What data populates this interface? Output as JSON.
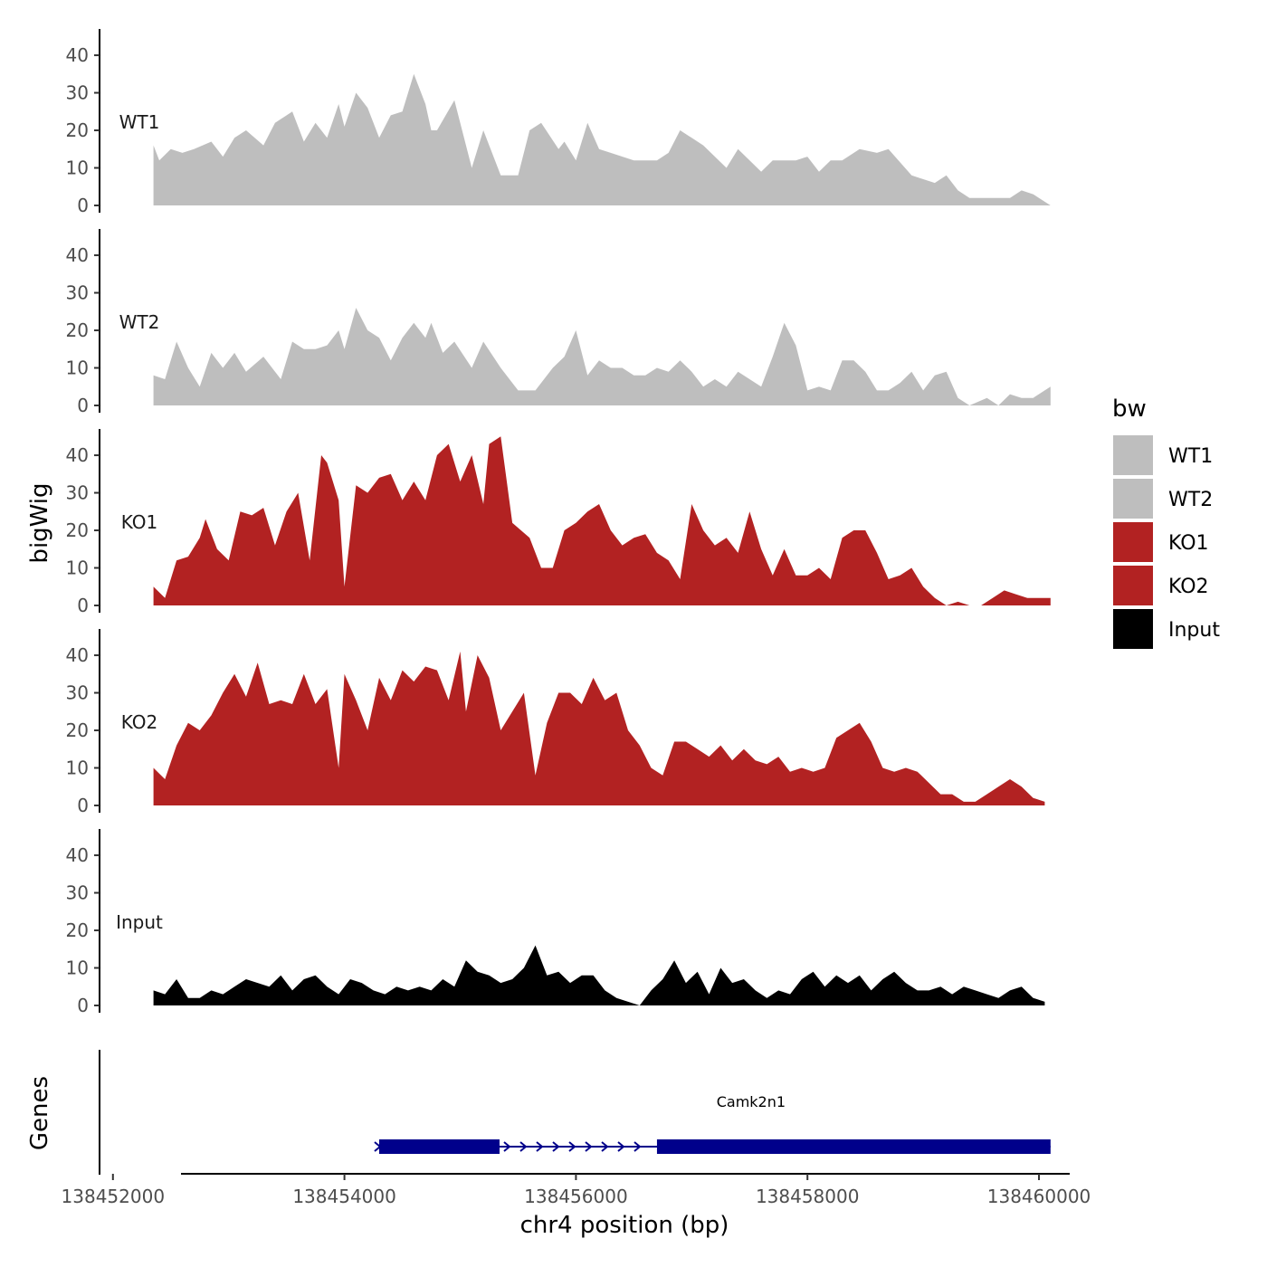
{
  "chart_data": {
    "type": "area",
    "chromosome_axis_label": "chr4 position (bp)",
    "y_axis_label": "bigWig",
    "genes_axis_label": "Genes",
    "xlim": [
      138451900,
      138460250
    ],
    "ylim": [
      0,
      47
    ],
    "x_ticks": [
      {
        "value": 138452000,
        "label": "138452000"
      },
      {
        "value": 138454000,
        "label": "138454000"
      },
      {
        "value": 138456000,
        "label": "138456000"
      },
      {
        "value": 138458000,
        "label": "138458000"
      },
      {
        "value": 138460000,
        "label": "138460000"
      }
    ],
    "y_ticks": [
      {
        "value": 0,
        "label": "0"
      },
      {
        "value": 10,
        "label": "10"
      },
      {
        "value": 20,
        "label": "20"
      },
      {
        "value": 30,
        "label": "30"
      },
      {
        "value": 40,
        "label": "40"
      }
    ],
    "legend": {
      "title": "bw",
      "items": [
        {
          "name": "WT1",
          "color": "#bebebe"
        },
        {
          "name": "WT2",
          "color": "#bebebe"
        },
        {
          "name": "KO1",
          "color": "#b22222"
        },
        {
          "name": "KO2",
          "color": "#b22222"
        },
        {
          "name": "Input",
          "color": "#000000"
        }
      ]
    },
    "series": [
      {
        "name": "WT1",
        "color": "#bebebe",
        "x": [
          138452350,
          138452400,
          138452500,
          138452600,
          138452700,
          138452850,
          138452950,
          138453050,
          138453150,
          138453300,
          138453400,
          138453550,
          138453650,
          138453750,
          138453850,
          138453950,
          138454000,
          138454100,
          138454200,
          138454300,
          138454400,
          138454500,
          138454600,
          138454700,
          138454750,
          138454800,
          138454950,
          138455100,
          138455200,
          138455350,
          138455500,
          138455600,
          138455700,
          138455850,
          138455900,
          138456000,
          138456100,
          138456200,
          138456300,
          138456500,
          138456700,
          138456800,
          138456900,
          138457000,
          138457100,
          138457300,
          138457400,
          138457600,
          138457700,
          138457900,
          138458000,
          138458100,
          138458200,
          138458300,
          138458450,
          138458600,
          138458700,
          138458900,
          138459100,
          138459200,
          138459300,
          138459400,
          138459550,
          138459650,
          138459750,
          138459850,
          138459950,
          138460000,
          138460050,
          138460100
        ],
        "values": [
          16,
          12,
          15,
          14,
          15,
          17,
          13,
          18,
          20,
          16,
          22,
          25,
          17,
          22,
          18,
          27,
          21,
          30,
          26,
          18,
          24,
          25,
          35,
          27,
          20,
          20,
          28,
          10,
          20,
          8,
          8,
          20,
          22,
          15,
          17,
          12,
          22,
          15,
          14,
          12,
          12,
          14,
          20,
          18,
          16,
          10,
          15,
          9,
          12,
          12,
          13,
          9,
          12,
          12,
          15,
          14,
          15,
          8,
          6,
          8,
          4,
          2,
          2,
          2,
          2,
          4,
          3,
          2,
          1,
          0
        ]
      },
      {
        "name": "WT2",
        "color": "#bebebe",
        "x": [
          138452350,
          138452450,
          138452550,
          138452650,
          138452750,
          138452850,
          138452950,
          138453050,
          138453150,
          138453300,
          138453450,
          138453550,
          138453650,
          138453750,
          138453850,
          138453950,
          138454000,
          138454100,
          138454200,
          138454300,
          138454400,
          138454500,
          138454600,
          138454700,
          138454750,
          138454850,
          138454950,
          138455100,
          138455200,
          138455350,
          138455500,
          138455650,
          138455800,
          138455900,
          138456000,
          138456100,
          138456200,
          138456300,
          138456400,
          138456500,
          138456600,
          138456700,
          138456800,
          138456900,
          138457000,
          138457100,
          138457200,
          138457300,
          138457400,
          138457500,
          138457600,
          138457700,
          138457800,
          138457900,
          138458000,
          138458100,
          138458200,
          138458300,
          138458400,
          138458500,
          138458600,
          138458700,
          138458800,
          138458900,
          138459000,
          138459100,
          138459200,
          138459300,
          138459400,
          138459550,
          138459650,
          138459750,
          138459850,
          138459950,
          138460100
        ],
        "values": [
          8,
          7,
          17,
          10,
          5,
          14,
          10,
          14,
          9,
          13,
          7,
          17,
          15,
          15,
          16,
          20,
          15,
          26,
          20,
          18,
          12,
          18,
          22,
          18,
          22,
          14,
          17,
          10,
          17,
          10,
          4,
          4,
          10,
          13,
          20,
          8,
          12,
          10,
          10,
          8,
          8,
          10,
          9,
          12,
          9,
          5,
          7,
          5,
          9,
          7,
          5,
          13,
          22,
          16,
          4,
          5,
          4,
          12,
          12,
          9,
          4,
          4,
          6,
          9,
          4,
          8,
          9,
          2,
          0,
          2,
          0,
          3,
          2,
          2,
          5
        ]
      },
      {
        "name": "KO1",
        "color": "#b22222",
        "x": [
          138452350,
          138452450,
          138452550,
          138452650,
          138452750,
          138452800,
          138452900,
          138453000,
          138453100,
          138453200,
          138453300,
          138453400,
          138453500,
          138453600,
          138453700,
          138453800,
          138453850,
          138453950,
          138454000,
          138454100,
          138454200,
          138454300,
          138454400,
          138454500,
          138454600,
          138454700,
          138454800,
          138454900,
          138455000,
          138455100,
          138455200,
          138455250,
          138455350,
          138455450,
          138455600,
          138455700,
          138455800,
          138455900,
          138456000,
          138456100,
          138456200,
          138456300,
          138456400,
          138456500,
          138456600,
          138456700,
          138456800,
          138456900,
          138457000,
          138457100,
          138457200,
          138457300,
          138457400,
          138457500,
          138457600,
          138457700,
          138457800,
          138457900,
          138458000,
          138458100,
          138458200,
          138458300,
          138458400,
          138458500,
          138458600,
          138458700,
          138458800,
          138458900,
          138459000,
          138459100,
          138459200,
          138459300,
          138459400,
          138459500,
          138459600,
          138459700,
          138459800,
          138459900,
          138460000,
          138460100
        ],
        "values": [
          5,
          2,
          12,
          13,
          18,
          23,
          15,
          12,
          25,
          24,
          26,
          16,
          25,
          30,
          12,
          40,
          38,
          28,
          5,
          32,
          30,
          34,
          35,
          28,
          33,
          28,
          40,
          43,
          33,
          40,
          27,
          43,
          45,
          22,
          18,
          10,
          10,
          20,
          22,
          25,
          27,
          20,
          16,
          18,
          19,
          14,
          12,
          7,
          27,
          20,
          16,
          18,
          14,
          25,
          15,
          8,
          15,
          8,
          8,
          10,
          7,
          18,
          20,
          20,
          14,
          7,
          8,
          10,
          5,
          2,
          0,
          1,
          0,
          0,
          2,
          4,
          3,
          2,
          2,
          2
        ]
      },
      {
        "name": "KO2",
        "color": "#b22222",
        "x": [
          138452350,
          138452450,
          138452550,
          138452650,
          138452750,
          138452850,
          138452950,
          138453050,
          138453150,
          138453250,
          138453350,
          138453450,
          138453550,
          138453650,
          138453750,
          138453850,
          138453950,
          138454000,
          138454100,
          138454200,
          138454300,
          138454400,
          138454500,
          138454600,
          138454700,
          138454800,
          138454900,
          138455000,
          138455050,
          138455150,
          138455250,
          138455350,
          138455450,
          138455550,
          138455650,
          138455750,
          138455850,
          138455950,
          138456050,
          138456150,
          138456250,
          138456350,
          138456450,
          138456550,
          138456650,
          138456750,
          138456850,
          138456950,
          138457050,
          138457150,
          138457250,
          138457350,
          138457450,
          138457550,
          138457650,
          138457750,
          138457850,
          138457950,
          138458050,
          138458150,
          138458250,
          138458350,
          138458450,
          138458550,
          138458650,
          138458750,
          138458850,
          138458950,
          138459050,
          138459150,
          138459250,
          138459350,
          138459450,
          138459550,
          138459650,
          138459750,
          138459850,
          138459950,
          138460050
        ],
        "values": [
          10,
          7,
          16,
          22,
          20,
          24,
          30,
          35,
          29,
          38,
          27,
          28,
          27,
          35,
          27,
          31,
          10,
          35,
          28,
          20,
          34,
          28,
          36,
          33,
          37,
          36,
          28,
          41,
          25,
          40,
          34,
          20,
          25,
          30,
          8,
          22,
          30,
          30,
          27,
          34,
          28,
          30,
          20,
          16,
          10,
          8,
          17,
          17,
          15,
          13,
          16,
          12,
          15,
          12,
          11,
          13,
          9,
          10,
          9,
          10,
          18,
          20,
          22,
          17,
          10,
          9,
          10,
          9,
          6,
          3,
          3,
          1,
          1,
          3,
          5,
          7,
          5,
          2,
          1
        ]
      },
      {
        "name": "Input",
        "color": "#000000",
        "x": [
          138452350,
          138452450,
          138452550,
          138452650,
          138452750,
          138452850,
          138452950,
          138453050,
          138453150,
          138453250,
          138453350,
          138453450,
          138453550,
          138453650,
          138453750,
          138453850,
          138453950,
          138454050,
          138454150,
          138454250,
          138454350,
          138454450,
          138454550,
          138454650,
          138454750,
          138454850,
          138454950,
          138455050,
          138455150,
          138455250,
          138455350,
          138455450,
          138455550,
          138455650,
          138455750,
          138455850,
          138455950,
          138456050,
          138456150,
          138456250,
          138456350,
          138456450,
          138456550,
          138456650,
          138456750,
          138456850,
          138456950,
          138457050,
          138457150,
          138457250,
          138457350,
          138457450,
          138457550,
          138457650,
          138457750,
          138457850,
          138457950,
          138458050,
          138458150,
          138458250,
          138458350,
          138458450,
          138458550,
          138458650,
          138458750,
          138458850,
          138458950,
          138459050,
          138459150,
          138459250,
          138459350,
          138459450,
          138459550,
          138459650,
          138459750,
          138459850,
          138459950,
          138460050
        ],
        "values": [
          4,
          3,
          7,
          2,
          2,
          4,
          3,
          5,
          7,
          6,
          5,
          8,
          4,
          7,
          8,
          5,
          3,
          7,
          6,
          4,
          3,
          5,
          4,
          5,
          4,
          7,
          5,
          12,
          9,
          8,
          6,
          7,
          10,
          16,
          8,
          9,
          6,
          8,
          8,
          4,
          2,
          1,
          0,
          4,
          7,
          12,
          6,
          9,
          3,
          10,
          6,
          7,
          4,
          2,
          4,
          3,
          7,
          9,
          5,
          8,
          6,
          8,
          4,
          7,
          9,
          6,
          4,
          4,
          5,
          3,
          5,
          4,
          3,
          2,
          4,
          5,
          2,
          1
        ]
      }
    ],
    "genes": [
      {
        "name": "Camk2n1",
        "start": 138454300,
        "end": 138460100,
        "strand": "+",
        "exons": [
          {
            "start": 138454300,
            "end": 138455340
          },
          {
            "start": 138456700,
            "end": 138460100
          }
        ]
      }
    ]
  }
}
